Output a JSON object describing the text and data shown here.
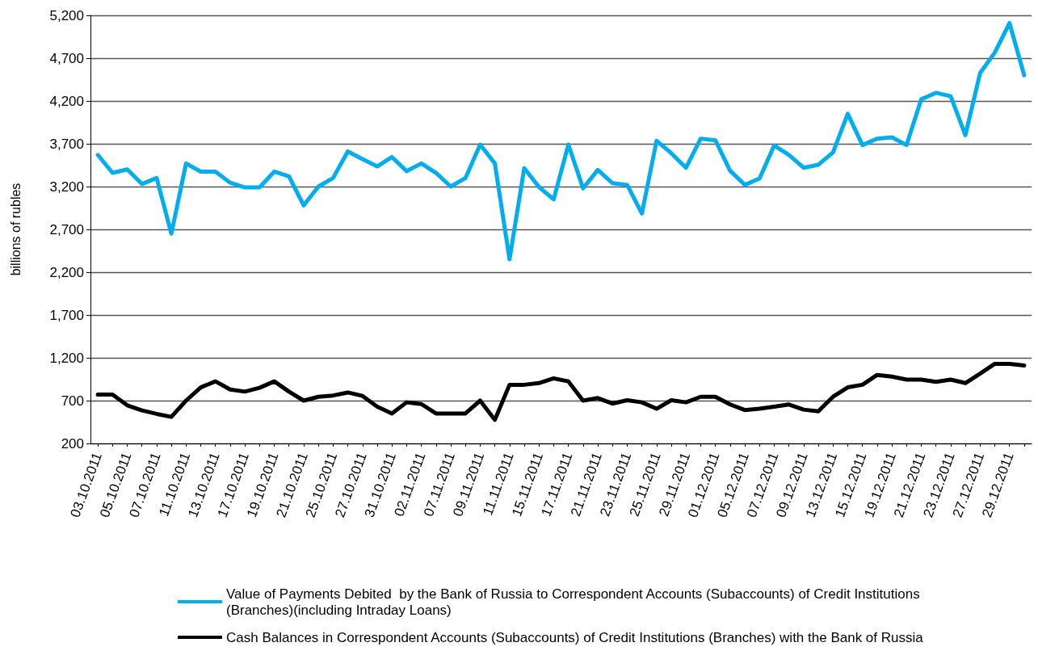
{
  "chart_data": {
    "type": "line",
    "ylabel": "billions of rubles",
    "categories": [
      "03.10.2011",
      null,
      "05.10.2011",
      null,
      "07.10.2011",
      null,
      "11.10.2011",
      null,
      "13.10.2011",
      null,
      "17.10.2011",
      null,
      "19.10.2011",
      null,
      "21.10.2011",
      null,
      "25.10.2011",
      null,
      "27.10.2011",
      null,
      "31.10.2011",
      null,
      "02.11.2011",
      null,
      "07.11.2011",
      null,
      "09.11.2011",
      null,
      "11.11.2011",
      null,
      "15.11.2011",
      null,
      "17.11.2011",
      null,
      "21.11.2011",
      null,
      "23.11.2011",
      null,
      "25.11.2011",
      null,
      "29.11.2011",
      null,
      "01.12.2011",
      null,
      "05.12.2011",
      null,
      "07.12.2011",
      null,
      "09.12.2011",
      null,
      "13.12.2011",
      null,
      "15.12.2011",
      null,
      "19.12.2011",
      null,
      "21.12.2011",
      null,
      "23.12.2011",
      null,
      "27.12.2011",
      null,
      "29.12.2011",
      null
    ],
    "series": [
      {
        "name": "Value of Payments Debited  by the Bank of Russia to Correspondent Accounts (Subaccounts) of Credit Institutions (Branches)(including Intraday Loans)",
        "color": "#00aeef",
        "values": [
          3570,
          3360,
          3400,
          3230,
          3300,
          2650,
          3470,
          3375,
          3375,
          3245,
          3190,
          3190,
          3375,
          3320,
          2980,
          3200,
          3300,
          3610,
          3520,
          3435,
          3545,
          3380,
          3470,
          3360,
          3200,
          3300,
          3690,
          3470,
          2350,
          3415,
          3195,
          3050,
          3690,
          3180,
          3395,
          3240,
          3220,
          2885,
          3735,
          3590,
          3420,
          3760,
          3740,
          3385,
          3220,
          3295,
          3680,
          3570,
          3420,
          3455,
          3600,
          4050,
          3685,
          3760,
          3775,
          3685,
          4220,
          4295,
          4255,
          3800,
          4525,
          4765,
          5110,
          4500
        ]
      },
      {
        "name": "Cash Balances in Correspondent Accounts (Subaccounts) of Credit Institutions (Branches) with the Bank of Russia",
        "color": "#000000",
        "values": [
          770,
          770,
          645,
          585,
          545,
          510,
          700,
          855,
          925,
          830,
          805,
          850,
          925,
          805,
          700,
          745,
          760,
          795,
          755,
          630,
          550,
          680,
          660,
          550,
          550,
          550,
          700,
          475,
          885,
          885,
          905,
          960,
          925,
          700,
          730,
          665,
          705,
          680,
          605,
          705,
          680,
          745,
          745,
          655,
          590,
          605,
          630,
          655,
          595,
          575,
          745,
          855,
          885,
          1000,
          980,
          945,
          945,
          920,
          945,
          905,
          1015,
          1130,
          1130,
          1110
        ]
      }
    ],
    "ylim": [
      200,
      5200
    ],
    "yticks": [
      {
        "value": 200,
        "label": "200"
      },
      {
        "value": 700,
        "label": "700"
      },
      {
        "value": 1200,
        "label": "1,200"
      },
      {
        "value": 1700,
        "label": "1,700"
      },
      {
        "value": 2200,
        "label": "2,200"
      },
      {
        "value": 2700,
        "label": "2,700"
      },
      {
        "value": 3200,
        "label": "3,200"
      },
      {
        "value": 3700,
        "label": "3,700"
      },
      {
        "value": 4200,
        "label": "4,200"
      },
      {
        "value": 4700,
        "label": "4,700"
      },
      {
        "value": 5200,
        "label": "5,200"
      }
    ],
    "grid": "y",
    "legend": "bottom",
    "marker": "none",
    "line_style": "solid"
  }
}
